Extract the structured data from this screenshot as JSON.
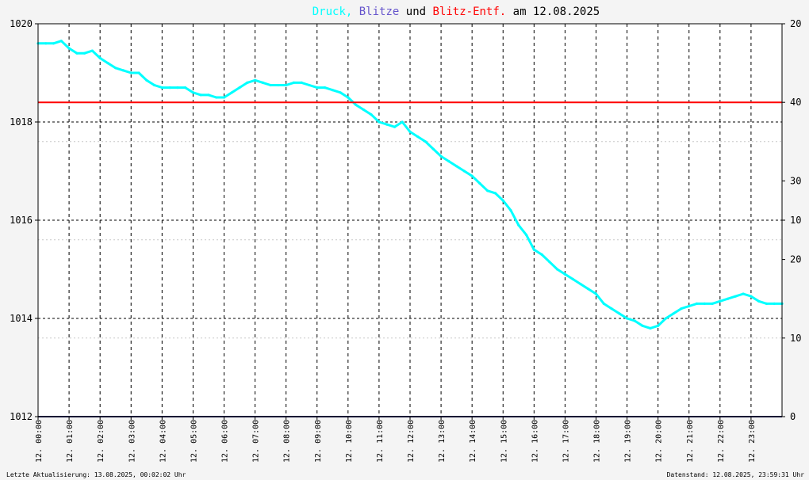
{
  "chart_data": {
    "type": "line",
    "title_parts": [
      {
        "text": "Druck,",
        "color": "#00ffff"
      },
      {
        "text": "Blitze",
        "color": "#6655cc"
      },
      {
        "text": "und",
        "color": "#000000"
      },
      {
        "text": "Blitz-Entf.",
        "color": "#ff0000"
      },
      {
        "text": "am 12.08.2025",
        "color": "#000000"
      }
    ],
    "x_range": [
      0,
      24
    ],
    "x_ticks": [
      {
        "h": 0,
        "label": "12. 00:00"
      },
      {
        "h": 1,
        "label": "12. 01:00"
      },
      {
        "h": 2,
        "label": "12. 02:00"
      },
      {
        "h": 3,
        "label": "12. 03:00"
      },
      {
        "h": 4,
        "label": "12. 04:00"
      },
      {
        "h": 5,
        "label": "12. 05:00"
      },
      {
        "h": 6,
        "label": "12. 06:00"
      },
      {
        "h": 7,
        "label": "12. 07:00"
      },
      {
        "h": 8,
        "label": "12. 08:00"
      },
      {
        "h": 9,
        "label": "12. 09:00"
      },
      {
        "h": 10,
        "label": "12. 10:00"
      },
      {
        "h": 11,
        "label": "12. 11:00"
      },
      {
        "h": 12,
        "label": "12. 12:00"
      },
      {
        "h": 13,
        "label": "12. 13:00"
      },
      {
        "h": 14,
        "label": "12. 14:00"
      },
      {
        "h": 15,
        "label": "12. 15:00"
      },
      {
        "h": 16,
        "label": "12. 16:00"
      },
      {
        "h": 17,
        "label": "12. 17:00"
      },
      {
        "h": 18,
        "label": "12. 18:00"
      },
      {
        "h": 19,
        "label": "12. 19:00"
      },
      {
        "h": 20,
        "label": "12. 20:00"
      },
      {
        "h": 21,
        "label": "12. 21:00"
      },
      {
        "h": 22,
        "label": "12. 22:00"
      },
      {
        "h": 23,
        "label": "12. 23:00"
      }
    ],
    "y_left": {
      "min": 1012,
      "max": 1020,
      "ticks": [
        1012,
        1014,
        1016,
        1018,
        1020
      ],
      "labels": [
        "1012",
        "1014",
        "1016",
        "1018",
        "1020"
      ],
      "minor_ticks": [
        1013.6,
        1015.6,
        1017.6
      ]
    },
    "y_right_labels": [
      {
        "value": "20",
        "p": 1020
      },
      {
        "value": "40",
        "p": 1018.4
      },
      {
        "value": "30",
        "p": 1016.8
      },
      {
        "value": "10",
        "p": 1016.0
      },
      {
        "value": "20",
        "p": 1015.2
      },
      {
        "value": "10",
        "p": 1013.6
      },
      {
        "value": "0",
        "p": 1012
      }
    ],
    "reference_line": {
      "value": 1018.4,
      "color": "#ff0000"
    },
    "baseline": {
      "value": 1012,
      "color": "#1a1a66"
    },
    "series": [
      {
        "color": "#00ffff",
        "x": [
          0.0,
          0.25,
          0.5,
          0.75,
          1.0,
          1.25,
          1.5,
          1.75,
          2.0,
          2.25,
          2.5,
          2.75,
          3.0,
          3.25,
          3.5,
          3.75,
          4.0,
          4.25,
          4.5,
          4.75,
          5.0,
          5.25,
          5.5,
          5.75,
          6.0,
          6.25,
          6.5,
          6.75,
          7.0,
          7.25,
          7.5,
          7.75,
          8.0,
          8.25,
          8.5,
          8.75,
          9.0,
          9.25,
          9.5,
          9.75,
          10.0,
          10.25,
          10.5,
          10.75,
          11.0,
          11.25,
          11.5,
          11.75,
          12.0,
          12.25,
          12.5,
          12.75,
          13.0,
          13.25,
          13.5,
          13.75,
          14.0,
          14.25,
          14.5,
          14.75,
          15.0,
          15.25,
          15.5,
          15.75,
          16.0,
          16.25,
          16.5,
          16.75,
          17.0,
          17.25,
          17.5,
          17.75,
          18.0,
          18.25,
          18.5,
          18.75,
          19.0,
          19.25,
          19.5,
          19.75,
          20.0,
          20.25,
          20.5,
          20.75,
          21.0,
          21.25,
          21.5,
          21.75,
          22.0,
          22.25,
          22.5,
          22.75,
          23.0,
          23.25,
          23.5,
          23.75,
          24.0
        ],
        "y": [
          1019.6,
          1019.6,
          1019.6,
          1019.65,
          1019.5,
          1019.4,
          1019.4,
          1019.45,
          1019.3,
          1019.2,
          1019.1,
          1019.05,
          1019.0,
          1019.0,
          1018.85,
          1018.75,
          1018.7,
          1018.7,
          1018.7,
          1018.7,
          1018.6,
          1018.55,
          1018.55,
          1018.5,
          1018.5,
          1018.6,
          1018.7,
          1018.8,
          1018.85,
          1018.8,
          1018.75,
          1018.75,
          1018.75,
          1018.8,
          1018.8,
          1018.75,
          1018.7,
          1018.7,
          1018.65,
          1018.6,
          1018.5,
          1018.35,
          1018.25,
          1018.15,
          1018.0,
          1017.95,
          1017.9,
          1018.0,
          1017.8,
          1017.7,
          1017.6,
          1017.45,
          1017.3,
          1017.2,
          1017.1,
          1017.0,
          1016.9,
          1016.75,
          1016.6,
          1016.55,
          1016.4,
          1016.2,
          1015.9,
          1015.7,
          1015.4,
          1015.3,
          1015.15,
          1015.0,
          1014.9,
          1014.8,
          1014.7,
          1014.6,
          1014.5,
          1014.3,
          1014.2,
          1014.1,
          1014.0,
          1013.95,
          1013.85,
          1013.8,
          1013.85,
          1014.0,
          1014.1,
          1014.2,
          1014.25,
          1014.3,
          1014.3,
          1014.3,
          1014.35,
          1014.4,
          1014.45,
          1014.5,
          1014.45,
          1014.35,
          1014.3,
          1014.3,
          1014.3
        ]
      }
    ]
  },
  "footer": {
    "left": "Letzte Aktualisierung: 13.08.2025, 00:02:02 Uhr",
    "right": "Datenstand: 12.08.2025, 23:59:31 Uhr"
  }
}
